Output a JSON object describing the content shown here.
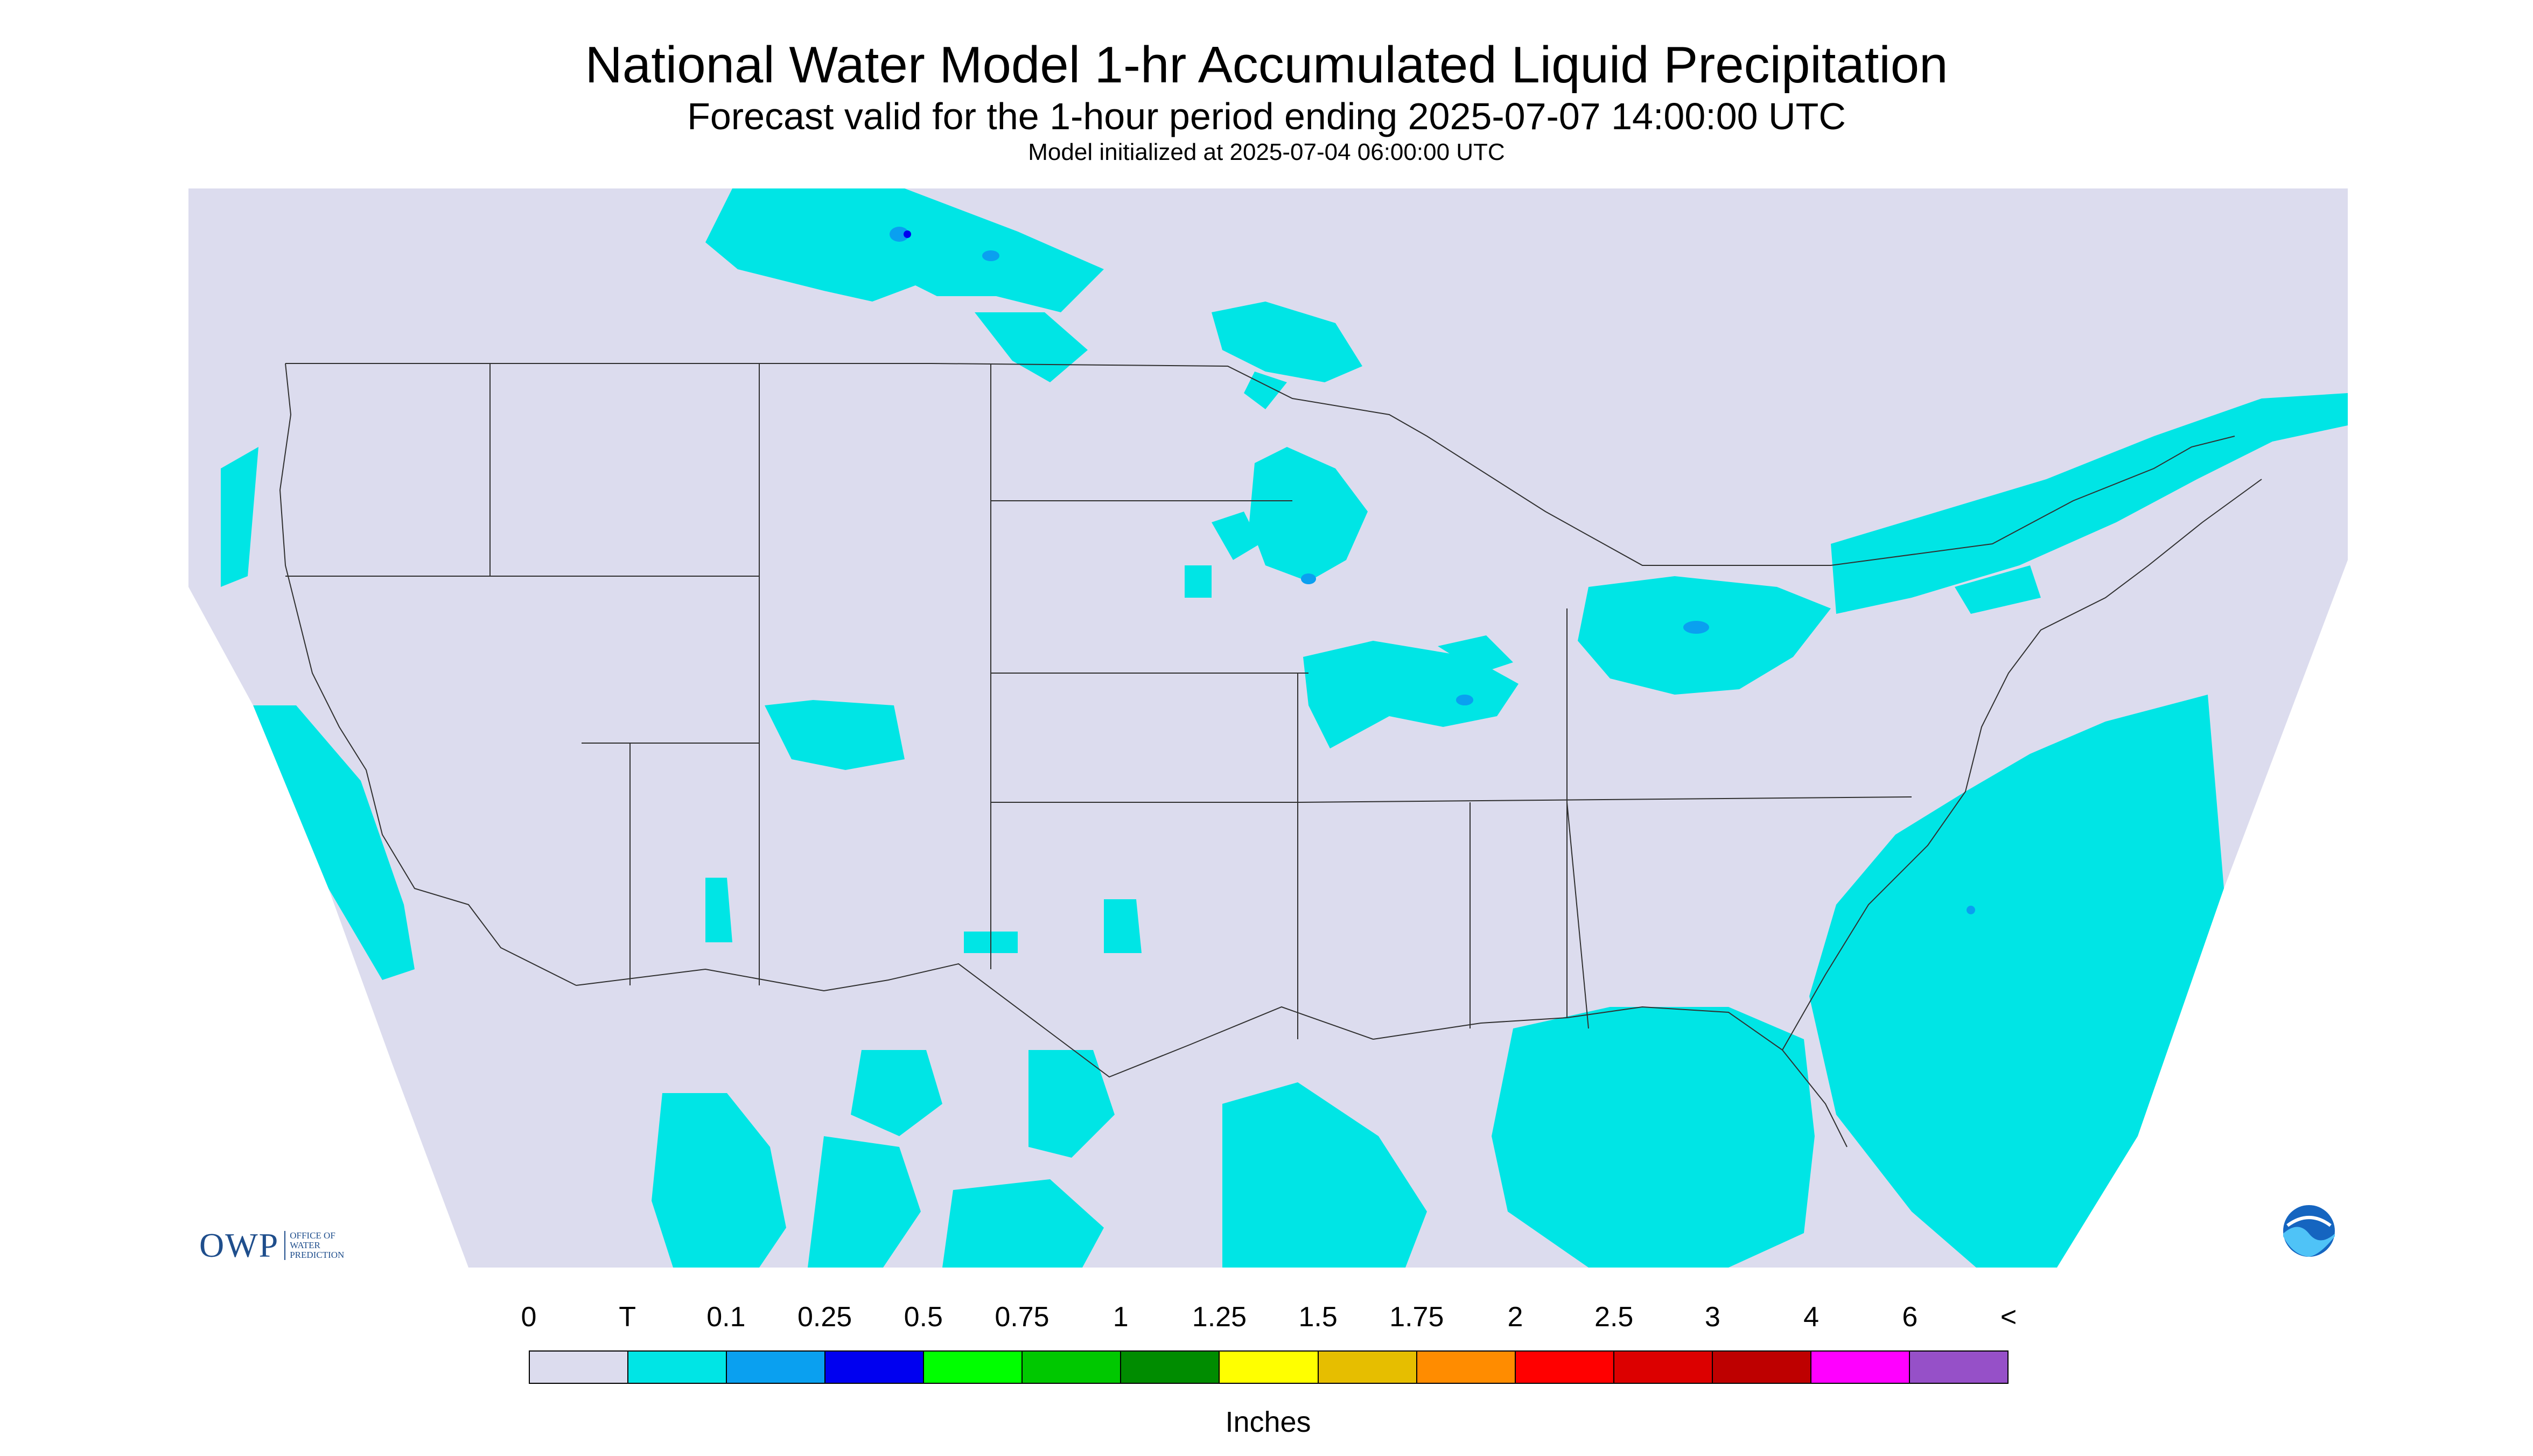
{
  "header": {
    "title": "National Water Model 1-hr Accumulated Liquid Precipitation",
    "subtitle": "Forecast valid for the 1-hour period ending 2025-07-07 14:00:00 UTC",
    "init": "Model initialized at 2025-07-04 06:00:00 UTC"
  },
  "legend": {
    "labels": [
      "0",
      "T",
      "0.1",
      "0.25",
      "0.5",
      "0.75",
      "1",
      "1.25",
      "1.5",
      "1.75",
      "2",
      "2.5",
      "3",
      "4",
      "6",
      "<"
    ],
    "colors": [
      "#dcdcee",
      "#00e5e5",
      "#0aa0f0",
      "#0000f0",
      "#00ff00",
      "#00c800",
      "#008c00",
      "#ffff00",
      "#e6be00",
      "#ff8c00",
      "#ff0000",
      "#dc0000",
      "#be0000",
      "#ff00ff",
      "#9650c8"
    ],
    "unit": "Inches"
  },
  "colors": {
    "background": "#dcdcee",
    "trace": "#00e5e5",
    "light": "#0aa0f0",
    "moderate": "#0000f0",
    "border": "#303030"
  },
  "logos": {
    "left_mark": "OWP",
    "left_text": [
      "OFFICE OF",
      "WATER",
      "PREDICTION"
    ],
    "right_icon": "noaa-logo-icon",
    "right_text": "NOAA"
  }
}
